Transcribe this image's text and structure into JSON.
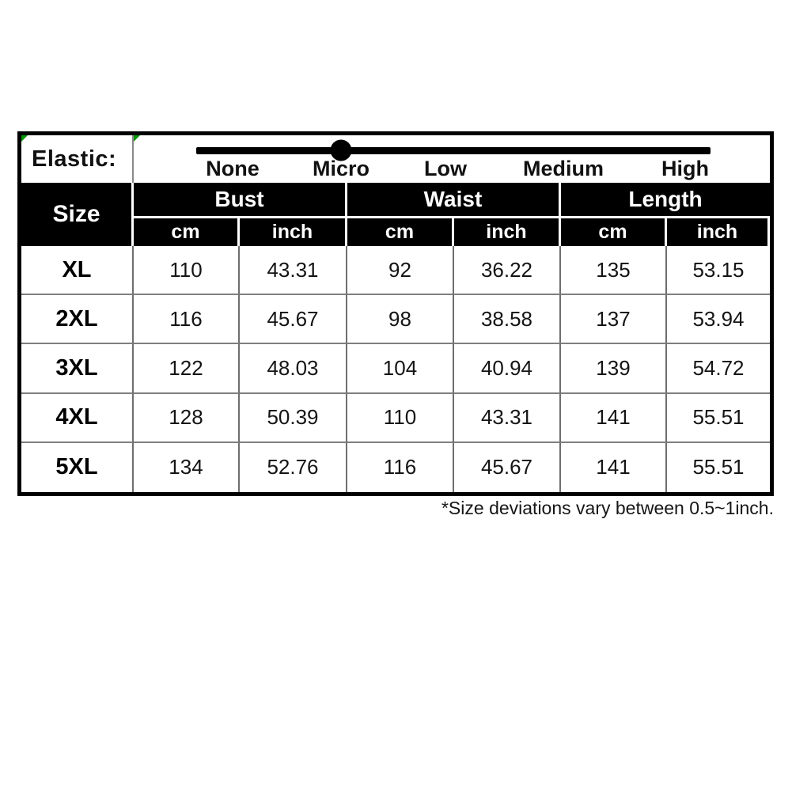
{
  "elastic": {
    "label": "Elastic:",
    "levels": [
      "None",
      "Micro",
      "Low",
      "Medium",
      "High"
    ],
    "selected": "Micro"
  },
  "table": {
    "size_header": "Size",
    "groups": [
      "Bust",
      "Waist",
      "Length"
    ],
    "units": [
      "cm",
      "inch"
    ],
    "rows": [
      {
        "size": "XL",
        "values": [
          "110",
          "43.31",
          "92",
          "36.22",
          "135",
          "53.15"
        ]
      },
      {
        "size": "2XL",
        "values": [
          "116",
          "45.67",
          "98",
          "38.58",
          "137",
          "53.94"
        ]
      },
      {
        "size": "3XL",
        "values": [
          "122",
          "48.03",
          "104",
          "40.94",
          "139",
          "54.72"
        ]
      },
      {
        "size": "4XL",
        "values": [
          "128",
          "50.39",
          "110",
          "43.31",
          "141",
          "55.51"
        ]
      },
      {
        "size": "5XL",
        "values": [
          "134",
          "52.76",
          "116",
          "45.67",
          "141",
          "55.51"
        ]
      }
    ]
  },
  "footnote": "*Size deviations vary between 0.5~1inch.",
  "colors": {
    "header_bg": "#000000",
    "header_text": "#ffffff",
    "grid_line": "#7f7f7f",
    "marker_green": "#009600"
  }
}
